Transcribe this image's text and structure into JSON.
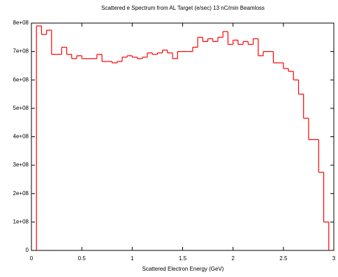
{
  "chart_data": {
    "type": "histogram",
    "title": "Scattered e Spectrum from AL Target (e/sec) 13 nC/min Beamloss",
    "x_label": "Scattered Electron Energy (GeV)",
    "color": "#ff0000",
    "bins": [
      0.05,
      0.1,
      0.15,
      0.2,
      0.25,
      0.3,
      0.35,
      0.4,
      0.45,
      0.5,
      0.55,
      0.6,
      0.65,
      0.7,
      0.75,
      0.8,
      0.85,
      0.9,
      0.95,
      1.0,
      1.05,
      1.1,
      1.15,
      1.2,
      1.25,
      1.3,
      1.35,
      1.4,
      1.45,
      1.5,
      1.55,
      1.6,
      1.65,
      1.7,
      1.75,
      1.8,
      1.85,
      1.9,
      1.95,
      2.0,
      2.05,
      2.1,
      2.15,
      2.2,
      2.25,
      2.3,
      2.35,
      2.4,
      2.45,
      2.5,
      2.55,
      2.6,
      2.65,
      2.7,
      2.75,
      2.8,
      2.85,
      2.9,
      2.95
    ],
    "values": [
      790000000.0,
      760000000.0,
      775000000.0,
      690000000.0,
      690000000.0,
      715000000.0,
      690000000.0,
      675000000.0,
      685000000.0,
      675000000.0,
      675000000.0,
      675000000.0,
      690000000.0,
      665000000.0,
      665000000.0,
      660000000.0,
      665000000.0,
      680000000.0,
      685000000.0,
      680000000.0,
      675000000.0,
      680000000.0,
      695000000.0,
      690000000.0,
      695000000.0,
      705000000.0,
      695000000.0,
      675000000.0,
      700000000.0,
      700000000.0,
      700000000.0,
      715000000.0,
      750000000.0,
      735000000.0,
      745000000.0,
      735000000.0,
      750000000.0,
      770000000.0,
      725000000.0,
      740000000.0,
      725000000.0,
      735000000.0,
      725000000.0,
      745000000.0,
      685000000.0,
      700000000.0,
      700000000.0,
      660000000.0,
      660000000.0,
      640000000.0,
      630000000.0,
      600000000.0,
      550000000.0,
      465000000.0,
      390000000.0,
      390000000.0,
      275000000.0,
      100000000.0
    ],
    "xlim": [
      0,
      3
    ],
    "xticks": [
      0,
      0.5,
      1,
      1.5,
      2,
      2.5,
      3
    ],
    "ylim": [
      0,
      800000000.0
    ],
    "yticks": [
      0,
      {
        "value": 100000000.0,
        "label": "1e+08"
      },
      {
        "value": 200000000.0,
        "label": "2e+08"
      },
      {
        "value": 300000000.0,
        "label": "3e+08"
      },
      {
        "value": 400000000.0,
        "label": "4e+08"
      },
      {
        "value": 500000000.0,
        "label": "5e+08"
      },
      {
        "value": 600000000.0,
        "label": "6e+08"
      },
      {
        "value": 700000000.0,
        "label": "7e+08"
      },
      {
        "value": 800000000.0,
        "label": "8e+08"
      }
    ]
  }
}
